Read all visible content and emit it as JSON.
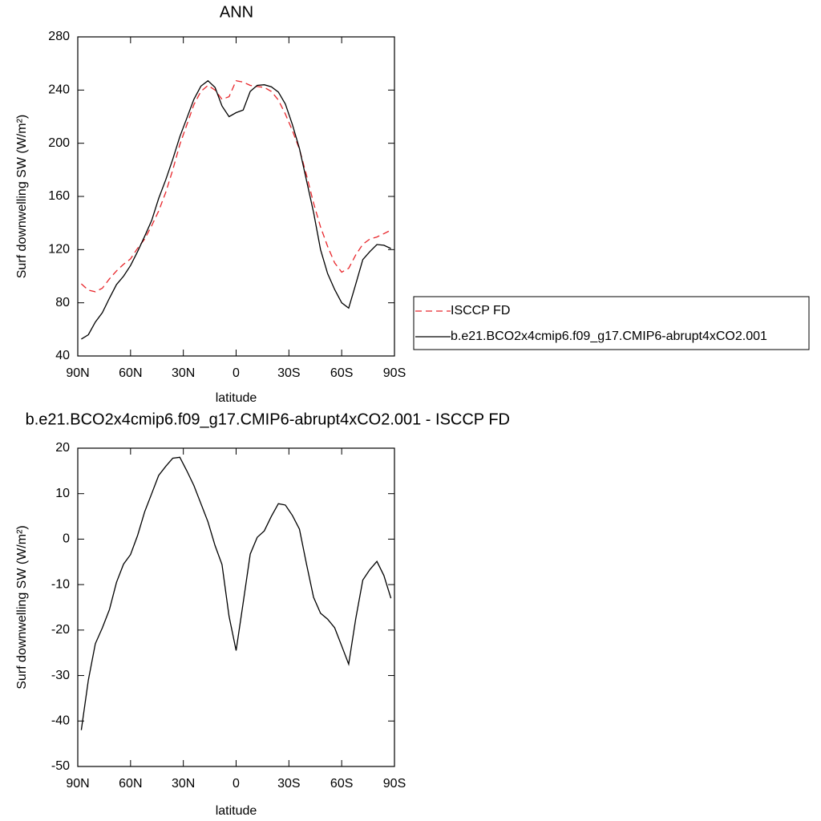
{
  "chart_data": [
    {
      "type": "line",
      "title": "ANN",
      "xlabel": "latitude",
      "ylabel": "Surf downwelling SW (W/m²)",
      "x": [
        88,
        84,
        80,
        76,
        72,
        68,
        64,
        60,
        56,
        52,
        48,
        44,
        40,
        36,
        32,
        28,
        24,
        20,
        16,
        12,
        8,
        4,
        0,
        -4,
        -8,
        -12,
        -16,
        -20,
        -24,
        -28,
        -32,
        -36,
        -40,
        -44,
        -48,
        -52,
        -56,
        -60,
        -64,
        -68,
        -72,
        -76,
        -80,
        -84,
        -88
      ],
      "xlim": [
        90,
        -90
      ],
      "xticks": [
        {
          "value": 90,
          "label": "90N"
        },
        {
          "value": 60,
          "label": "60N"
        },
        {
          "value": 30,
          "label": "30N"
        },
        0,
        {
          "value": -30,
          "label": "30S"
        },
        {
          "value": -60,
          "label": "60S"
        },
        {
          "value": -90,
          "label": "90S"
        }
      ],
      "ylim": [
        40,
        280
      ],
      "yticks": [
        40,
        80,
        120,
        160,
        200,
        240,
        280
      ],
      "legend": "right",
      "series": [
        {
          "name": "ISCCP FD",
          "color": "#e8262b",
          "style": "dashed",
          "values": [
            94.3,
            89.5,
            88.3,
            91,
            98,
            104,
            109,
            113,
            121,
            128,
            138,
            149,
            163,
            180,
            199,
            214,
            229,
            239,
            243.5,
            240,
            233,
            235,
            247,
            246,
            243.5,
            242.7,
            242,
            239,
            232.5,
            222,
            209.5,
            195.5,
            176,
            155,
            137,
            122.5,
            110,
            103,
            106,
            116,
            124,
            128,
            129.5,
            132,
            134.7
          ]
        },
        {
          "name": "b.e21.BCO2x4cmip6.f09_g17.CMIP6-abrupt4xCO2.001",
          "color": "#000000",
          "style": "solid",
          "values": [
            52.7,
            56,
            65.5,
            72.6,
            83.5,
            93.7,
            100,
            108,
            118.5,
            130,
            142,
            158.5,
            172.5,
            188,
            205,
            219,
            233,
            243,
            247,
            242,
            228,
            220,
            223,
            225,
            239,
            243.5,
            244,
            242.5,
            238.5,
            229.5,
            214,
            196,
            172,
            148,
            120,
            102,
            90,
            80,
            76,
            94,
            112.5,
            118.5,
            123.8,
            123.3,
            120.8
          ]
        }
      ]
    },
    {
      "type": "line",
      "title": "b.e21.BCO2x4cmip6.f09_g17.CMIP6-abrupt4xCO2.001 - ISCCP FD",
      "xlabel": "latitude",
      "ylabel": "Surf downwelling SW (W/m²)",
      "x": [
        88,
        84,
        80,
        76,
        72,
        68,
        64,
        60,
        56,
        52,
        48,
        44,
        40,
        36,
        32,
        28,
        24,
        20,
        16,
        12,
        8,
        4,
        0,
        -4,
        -8,
        -12,
        -16,
        -20,
        -24,
        -28,
        -32,
        -36,
        -40,
        -44,
        -48,
        -52,
        -56,
        -60,
        -64,
        -68,
        -72,
        -76,
        -80,
        -84,
        -88
      ],
      "xlim": [
        90,
        -90
      ],
      "xticks": [
        {
          "value": 90,
          "label": "90N"
        },
        {
          "value": 60,
          "label": "60N"
        },
        {
          "value": 30,
          "label": "30N"
        },
        0,
        {
          "value": -30,
          "label": "30S"
        },
        {
          "value": -60,
          "label": "60S"
        },
        {
          "value": -90,
          "label": "90S"
        }
      ],
      "ylim": [
        -50,
        20
      ],
      "yticks": [
        -50,
        -40,
        -30,
        -20,
        -10,
        0,
        10,
        20
      ],
      "series": [
        {
          "color": "#000000",
          "style": "solid",
          "values": [
            -42,
            -31,
            -23,
            -19.5,
            -15.5,
            -9.5,
            -5.5,
            -3.4,
            0.8,
            6,
            10,
            14,
            16,
            17.8,
            18,
            15,
            11.8,
            7.8,
            3.8,
            -1.4,
            -5.6,
            -17,
            -24.5,
            -14,
            -3.3,
            0.4,
            1.8,
            5,
            7.8,
            7.5,
            5.2,
            2.2,
            -5.5,
            -12.8,
            -16.3,
            -17.6,
            -19.5,
            -23.5,
            -27.5,
            -17.5,
            -9,
            -6.7,
            -4.9,
            -8,
            -13
          ]
        }
      ]
    }
  ]
}
